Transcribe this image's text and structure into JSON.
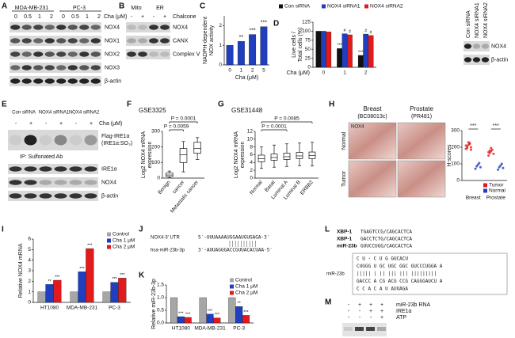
{
  "panels": [
    "A",
    "B",
    "C",
    "D",
    "E",
    "F",
    "G",
    "H",
    "I",
    "J",
    "K",
    "L",
    "M"
  ],
  "blots": {
    "A": {
      "groups": [
        "MDA-MB-231",
        "PC-3"
      ],
      "treatment": "Cha (μM)",
      "lanes": [
        "0",
        "0.5",
        "1",
        "2",
        "0",
        "0.5",
        "1",
        "2"
      ],
      "bands": [
        "NOX4",
        "NOX1",
        "NOX2",
        "NOX3",
        "β-actin"
      ]
    },
    "B": {
      "groups": [
        "Mito",
        "ER"
      ],
      "treatment": "Chalcone",
      "lanes": [
        "-",
        "+",
        "-",
        "+"
      ],
      "bands": [
        "NOX4",
        "CANX",
        "Complex Ⅴ"
      ]
    },
    "D": {
      "lanes": [
        "Con siRNA",
        "NOX4 siRNA1",
        "NOX4 siRNA2"
      ],
      "bands": [
        "NOX4",
        "β-actin"
      ]
    },
    "E": {
      "groups": [
        "Con siRNA",
        "NOX4 siRNA1",
        "NOX4 siRNA2"
      ],
      "treatment": "Cha (μM)",
      "lanes": [
        "-",
        "+",
        "-",
        "+",
        "-",
        "+"
      ],
      "ip_band": [
        "Flag-IRE1α",
        "(IRE1α:SO₃)"
      ],
      "ip": "IP: Sulfonated Ab",
      "bands": [
        "IRE1α",
        "NOX4",
        "β-actin"
      ]
    },
    "M": {
      "rows": [
        {
          "label": "miR-23b RNA",
          "signs": [
            "-",
            "+",
            "+",
            "+"
          ]
        },
        {
          "label": "IRE1α",
          "signs": [
            "-",
            "-",
            "+",
            "+"
          ]
        },
        {
          "label": "ATP",
          "signs": [
            "-",
            "-",
            "-",
            "+"
          ]
        }
      ]
    }
  },
  "histology": {
    "columns": [
      "Breast",
      "Prostate"
    ],
    "subtitles": [
      "(BC08013c)",
      "(PR481)"
    ],
    "rows": [
      "Normal",
      "Tumor"
    ],
    "stain": "NOX4"
  },
  "sequences": {
    "J": [
      {
        "label": "NOX4-3′ UTR",
        "seq": "5′-UUUAAAAUGGAAUGUGAGA-3′"
      },
      {
        "label": "hsa-miR-23b-3p",
        "seq": "3′-AUUAGGGACCGUUACACUAA-5′"
      }
    ],
    "L": {
      "rows": [
        {
          "label": "XBP-1",
          "seq": "TGAGTCCG/CAGCACTCA"
        },
        {
          "label": "XBP-1",
          "seq": "GACCTCTG/CAGCACTCA"
        },
        {
          "label": "miR-23b",
          "seq": "GUUCCUGG/CAGCACTCA"
        }
      ],
      "hairpin_label": "miR-23b",
      "hairpin": [
        "C   U  -  C    U     G   GUCACU",
        "CUGGG U GC UGC GGC GUCCCUGGA     A",
        "||||| | || ||| ||| |||||||||     ",
        "GACCC A CG ACG CCG CAGGGAUCU     A",
        "C   C  A  C    A     U   AUUAGA"
      ]
    }
  },
  "chart_data": [
    {
      "type": "bar",
      "panel": "C",
      "ylabel": [
        "NADPH-dependent",
        "NOX activity"
      ],
      "xlabel": "Cha (μM)",
      "categories": [
        "0",
        "1",
        "2",
        "5"
      ],
      "values": [
        1.0,
        1.2,
        1.55,
        1.95
      ],
      "annotations": [
        null,
        "**",
        "***",
        "***"
      ],
      "color": "#1f3fbf",
      "ylim": [
        0,
        2.5
      ],
      "yticks": [
        0,
        1,
        2
      ]
    },
    {
      "type": "bar",
      "panel": "D",
      "ylabel": [
        "Live cells /",
        "Total cells (%)"
      ],
      "xlabel": "Cha (μM)",
      "categories": [
        "0",
        "1",
        "2"
      ],
      "legend": "top",
      "series": [
        {
          "name": "Con siRNA",
          "color": "#111111",
          "values": [
            100,
            52,
            33
          ],
          "annotations": [
            null,
            "***",
            "***"
          ]
        },
        {
          "name": "NOX4 siRNA1",
          "color": "#1f3fbf",
          "values": [
            100,
            93,
            92
          ],
          "annotations": [
            null,
            "#",
            "#"
          ]
        },
        {
          "name": "NOX4 siRNA2",
          "color": "#e31a1c",
          "values": [
            98,
            90,
            88
          ],
          "annotations": [
            null,
            "#",
            "#"
          ]
        }
      ],
      "ylim": [
        0,
        125
      ],
      "yticks": [
        0,
        25,
        50,
        75,
        100,
        125
      ]
    },
    {
      "type": "box",
      "panel": "F",
      "title": "GSE3325",
      "ylabel": [
        "Log2 NOX4 mRNA",
        "expression"
      ],
      "categories": [
        "Benign",
        "cancer",
        "Metastatic cancer"
      ],
      "stats": [
        [
          2,
          10,
          20,
          32,
          45
        ],
        [
          40,
          100,
          150,
          190,
          235
        ],
        [
          120,
          160,
          190,
          230,
          260
        ]
      ],
      "comparisons": [
        {
          "pair": [
            "Benign",
            "Metastatic cancer"
          ],
          "label": "P = 0.0001"
        },
        {
          "pair": [
            "Benign",
            "cancer"
          ],
          "label": "P = 0.0059"
        }
      ],
      "ylim": [
        0,
        300
      ],
      "yticks": [
        0,
        100,
        200,
        300
      ]
    },
    {
      "type": "box",
      "panel": "G",
      "title": "GSE31448",
      "ylabel": [
        "Log2 NOX4 mRNA",
        "expression"
      ],
      "categories": [
        "Normal",
        "Basal",
        "Luminal A",
        "Luminal B",
        "ERBB2"
      ],
      "stats": [
        [
          2.5,
          4.2,
          5.0,
          5.9,
          8.0
        ],
        [
          2.8,
          4.6,
          5.3,
          6.2,
          8.5
        ],
        [
          3.0,
          4.8,
          5.5,
          6.4,
          8.8
        ],
        [
          3.2,
          5.0,
          5.7,
          6.6,
          9.0
        ],
        [
          3.1,
          5.0,
          5.8,
          6.7,
          9.2
        ]
      ],
      "comparisons": [
        {
          "pair": [
            "Normal",
            "ERBB2"
          ],
          "label": "P = 0.0085"
        },
        {
          "pair": [
            "Normal",
            "Luminal A"
          ],
          "label": "P = 0.0001"
        }
      ],
      "ylim": [
        0,
        12
      ],
      "yticks": [
        0,
        2,
        4,
        6,
        8,
        10,
        12
      ]
    },
    {
      "type": "dot",
      "panel": "H",
      "ylabel": [
        "H-scores"
      ],
      "categories": [
        "Breast",
        "Prostate"
      ],
      "legend": "bottom",
      "series": [
        {
          "name": "Tumor",
          "color": "#e31a1c",
          "values": [
            [
              190,
              205,
              215,
              225,
              200,
              210,
              195,
              230,
              220,
              185
            ],
            [
              150,
              165,
              175,
              185,
              160,
              170,
              180,
              195
            ]
          ]
        },
        {
          "name": "Normal",
          "color": "#1f3fbf",
          "values": [
            [
              70,
              85,
              95,
              105,
              80
            ],
            [
              65,
              80,
              90,
              100,
              75
            ]
          ]
        }
      ],
      "comparisons": [
        {
          "category": "Breast",
          "label": "***"
        },
        {
          "category": "Prostate",
          "label": "***"
        }
      ],
      "ylim": [
        0,
        300
      ],
      "yticks": [
        0,
        100,
        200,
        300
      ]
    },
    {
      "type": "bar",
      "panel": "I",
      "ylabel": [
        "Relative NOX4 mRNA"
      ],
      "categories": [
        "HT1080",
        "MDA-MB-231",
        "PC-3"
      ],
      "legend": "upper right",
      "series": [
        {
          "name": "Control",
          "color": "#a6a6a6",
          "values": [
            1,
            1,
            1
          ],
          "annotations": [
            null,
            null,
            null
          ]
        },
        {
          "name": "Cha 1 μM",
          "color": "#1f3fbf",
          "values": [
            1.7,
            2.9,
            1.9
          ],
          "annotations": [
            "**",
            "***",
            "***"
          ]
        },
        {
          "name": "Cha 2 μM",
          "color": "#e31a1c",
          "values": [
            2.1,
            5.1,
            2.3
          ],
          "annotations": [
            "***",
            "***",
            "***"
          ]
        }
      ],
      "ylim": [
        0,
        6
      ],
      "yticks": [
        0,
        1,
        2,
        3,
        4,
        5,
        6
      ]
    },
    {
      "type": "bar",
      "panel": "K",
      "ylabel": [
        "Relative miR-23b-3p"
      ],
      "categories": [
        "HT1080",
        "MDA-MB-231",
        "PC-3"
      ],
      "legend": "upper right",
      "series": [
        {
          "name": "Control",
          "color": "#a6a6a6",
          "values": [
            1,
            1,
            1
          ],
          "annotations": [
            null,
            null,
            null
          ]
        },
        {
          "name": "Cha 1 μM",
          "color": "#1f3fbf",
          "values": [
            0.25,
            0.35,
            0.65
          ],
          "annotations": [
            "***",
            "***",
            "**"
          ]
        },
        {
          "name": "Cha 2 μM",
          "color": "#e31a1c",
          "values": [
            0.22,
            0.2,
            0.3
          ],
          "annotations": [
            "***",
            "***",
            "***"
          ]
        }
      ],
      "ylim": [
        0,
        1.5
      ],
      "yticks": [
        {
          "value": 0,
          "label": "0.0"
        },
        {
          "value": 0.5,
          "label": "0.5"
        },
        {
          "value": 1,
          "label": "1.0"
        },
        {
          "value": 1.5,
          "label": "1.5"
        }
      ]
    }
  ]
}
